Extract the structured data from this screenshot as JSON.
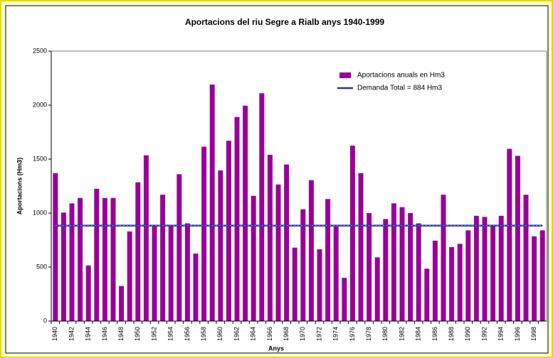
{
  "chart_data": {
    "type": "bar",
    "title": "Aportacions del riu Segre a Rialb anys 1940-1999",
    "x_label": "Anys",
    "y_label": "Aportacions (Hm3)",
    "categories": [
      "1940",
      null,
      "1942",
      null,
      "1944",
      null,
      "1946",
      null,
      "1948",
      null,
      "1950",
      null,
      "1952",
      null,
      "1954",
      null,
      "1956",
      null,
      "1958",
      null,
      "1960",
      null,
      "1962",
      null,
      "1964",
      null,
      "1966",
      null,
      "1968",
      null,
      "1970",
      null,
      "1972",
      null,
      "1974",
      null,
      "1976",
      null,
      "1978",
      null,
      "1980",
      null,
      "1982",
      null,
      "1984",
      null,
      "1986",
      null,
      "1988",
      null,
      "1990",
      null,
      "1992",
      null,
      "1994",
      null,
      "1996",
      null,
      "1998",
      null
    ],
    "series": [
      {
        "name": "Aportacions anuals en Hm3",
        "type": "bar",
        "color": "#990099",
        "values": [
          1370,
          1005,
          1090,
          1140,
          515,
          1225,
          1140,
          1140,
          325,
          830,
          1285,
          1535,
          880,
          1170,
          880,
          1360,
          905,
          625,
          1615,
          2190,
          1395,
          1670,
          1890,
          1995,
          1160,
          2110,
          1540,
          1265,
          1450,
          680,
          1035,
          1305,
          665,
          1130,
          875,
          400,
          1625,
          1370,
          1000,
          590,
          945,
          1090,
          1055,
          1000,
          905,
          485,
          745,
          1170,
          685,
          715,
          840,
          975,
          965,
          880,
          975,
          1595,
          1530,
          1170,
          785,
          840
        ]
      },
      {
        "name": "Demanda Total = 884 Hm3",
        "type": "line",
        "color": "#333399",
        "values": [
          884,
          884,
          884,
          884,
          884,
          884,
          884,
          884,
          884,
          884,
          884,
          884,
          884,
          884,
          884,
          884,
          884,
          884,
          884,
          884,
          884,
          884,
          884,
          884,
          884,
          884,
          884,
          884,
          884,
          884,
          884,
          884,
          884,
          884,
          884,
          884,
          884,
          884,
          884,
          884,
          884,
          884,
          884,
          884,
          884,
          884,
          884,
          884,
          884,
          884,
          884,
          884,
          884,
          884,
          884,
          884,
          884,
          884,
          884,
          884
        ]
      }
    ],
    "ylim": [
      0,
      2500
    ],
    "yticks": [
      0,
      500,
      1000,
      1500,
      2000,
      2500
    ],
    "grid": false
  }
}
